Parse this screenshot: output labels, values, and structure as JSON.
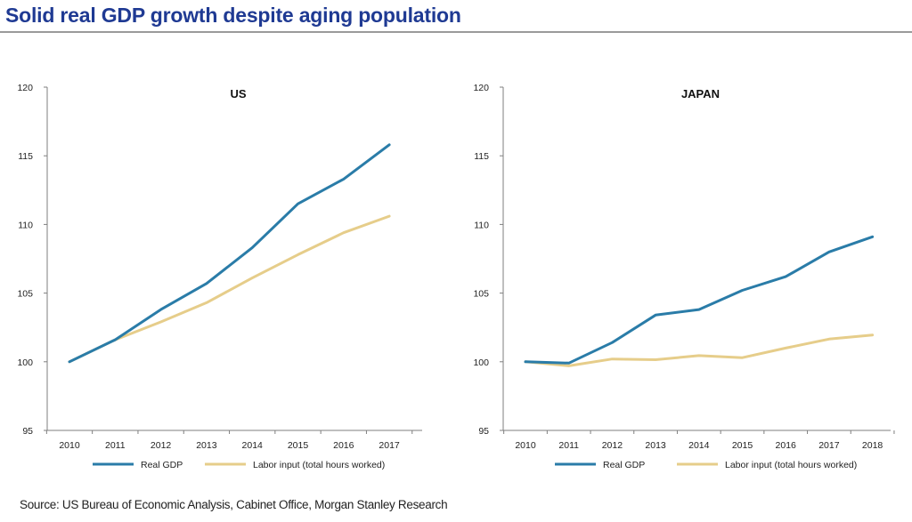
{
  "header": {
    "title": "Solid real GDP growth despite aging population"
  },
  "source": "Source: US Bureau of Economic Analysis, Cabinet Office, Morgan Stanley Research",
  "colors": {
    "title": "#1f3a93",
    "real_gdp": "#2a7ca8",
    "labor_input": "#e6cd8a",
    "axis": "#7f7f7f"
  },
  "chart_data": [
    {
      "type": "line",
      "title": "US",
      "x": [
        "2010",
        "2011",
        "2012",
        "2013",
        "2014",
        "2015",
        "2016",
        "2017"
      ],
      "ylim": [
        95,
        120
      ],
      "yticks": [
        "95",
        "100",
        "105",
        "110",
        "115",
        "120"
      ],
      "grid": false,
      "legend": "bottom",
      "series": [
        {
          "name": "Real GDP",
          "values": [
            100,
            101.6,
            103.8,
            105.7,
            108.3,
            111.5,
            113.3,
            115.8
          ]
        },
        {
          "name": "Labor input (total hours worked)",
          "values": [
            100,
            101.6,
            102.9,
            104.3,
            106.1,
            107.8,
            109.4,
            110.6
          ]
        }
      ]
    },
    {
      "type": "line",
      "title": "JAPAN",
      "x": [
        "2010",
        "2011",
        "2012",
        "2013",
        "2014",
        "2015",
        "2016",
        "2017",
        "2018"
      ],
      "ylim": [
        95,
        120
      ],
      "yticks": [
        "95",
        "100",
        "105",
        "110",
        "115",
        "120"
      ],
      "grid": false,
      "legend": "bottom",
      "series": [
        {
          "name": "Real GDP",
          "values": [
            100,
            99.9,
            101.4,
            103.4,
            103.8,
            105.2,
            106.2,
            108.0,
            109.1
          ]
        },
        {
          "name": "Labor input (total hours worked)",
          "values": [
            100,
            99.7,
            100.2,
            100.15,
            100.45,
            100.3,
            101.0,
            101.65,
            101.95
          ]
        }
      ]
    }
  ]
}
